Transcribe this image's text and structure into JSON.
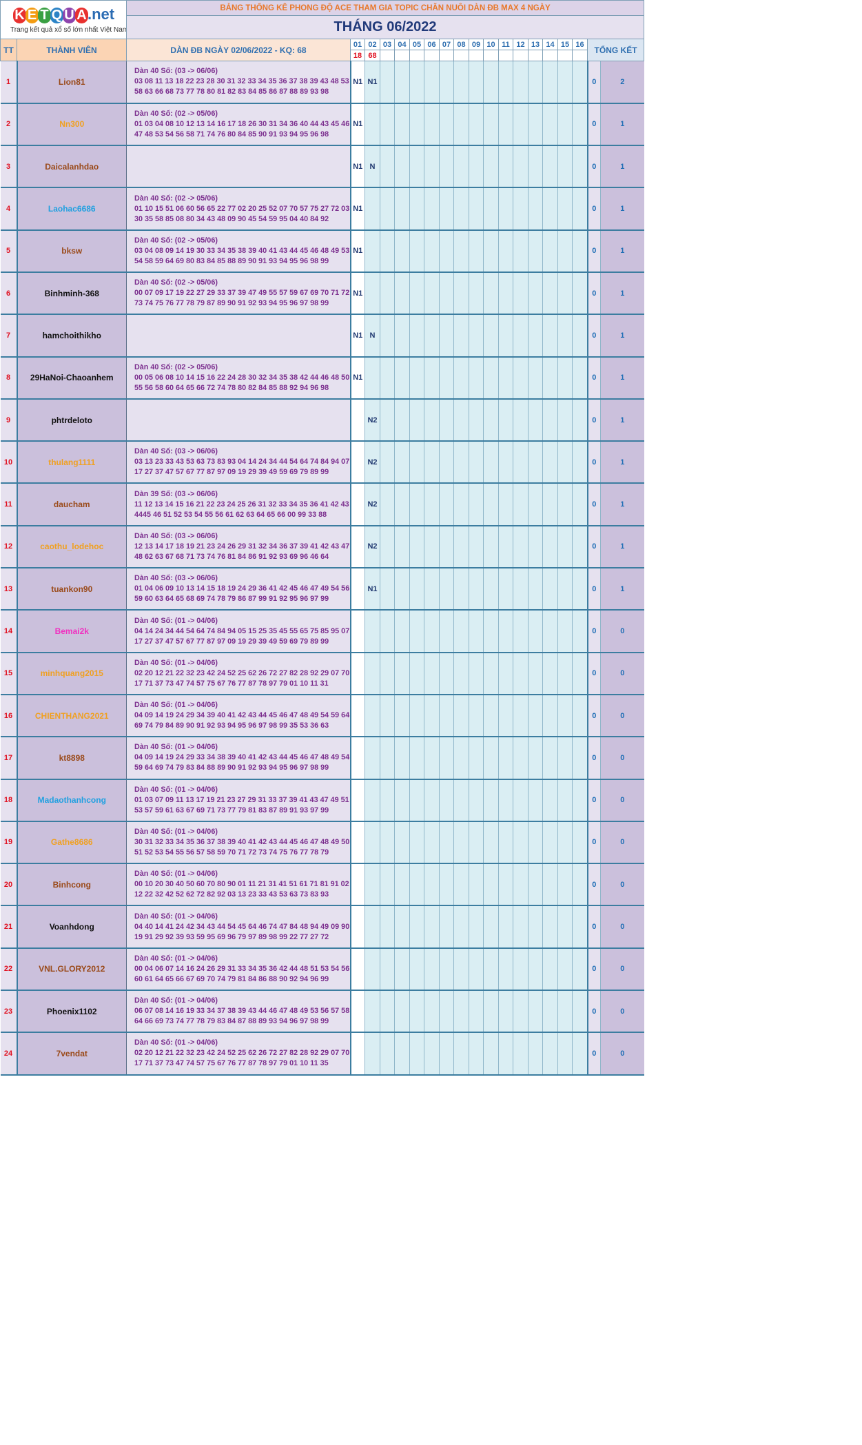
{
  "logo": {
    "k": "K",
    "e": "E",
    "t": "T",
    "q": "Q",
    "u": "U",
    "a": "A",
    "net": ".net",
    "tagline": "Trang kết quả xổ số lớn nhất Việt Nam"
  },
  "banner": "BẢNG THỐNG KÊ PHONG ĐỘ ACE THAM GIA TOPIC CHĂN NUÔI DÀN ĐB MAX 4 NGÀY",
  "month": "THÁNG 06/2022",
  "headers": {
    "tt": "TT",
    "member": "THÀNH VIÊN",
    "dan": "DÀN ĐB NGÀY 02/06/2022 - KQ: 68",
    "total": "TỔNG KẾT"
  },
  "days": [
    "01",
    "02",
    "03",
    "04",
    "05",
    "06",
    "07",
    "08",
    "09",
    "10",
    "11",
    "12",
    "13",
    "14",
    "15",
    "16"
  ],
  "results": [
    "18",
    "68",
    "",
    "",
    "",
    "",
    "",
    "",
    "",
    "",
    "",
    "",
    "",
    "",
    "",
    ""
  ],
  "colors": {
    "red": "#e01020",
    "brown": "#9a4a1a",
    "orange": "#f0a020",
    "blue": "#20a0e0",
    "black": "#111111",
    "pink": "#f030c0"
  },
  "rows": [
    {
      "tt": "1",
      "name": "Lion81",
      "color": "brown",
      "title": "Dàn 40 Số: (03 -> 06/06)",
      "l1": "03 08 11 13 18 22 23 28 30 31 32 33 34 35 36 37 38 39 43 48 53",
      "l2": "58 63 66 68 73 77 78 80 81 82 83 84 85 86 87 88 89 93 98",
      "d1": "N1",
      "d2": "N1",
      "s0": "0",
      "total": "2"
    },
    {
      "tt": "2",
      "name": "Nn300",
      "color": "orange",
      "title": "Dàn 40 Số: (02 -> 05/06)",
      "l1": "01 03 04 08 10 12 13 14 16 17 18 26 30 31 34 36 40 44 43 45 46",
      "l2": "47 48 53 54 56 58 71 74 76 80 84 85 90 91 93 94 95 96 98",
      "d1": "N1",
      "d2": "",
      "s0": "0",
      "total": "1"
    },
    {
      "tt": "3",
      "name": "Daicalanhdao",
      "color": "brown",
      "title": "",
      "l1": "",
      "l2": "",
      "d1": "N1",
      "d2": "N",
      "s0": "0",
      "total": "1"
    },
    {
      "tt": "4",
      "name": "Laohac6686",
      "color": "blue",
      "title": "Dàn 40 Số: (02 -> 05/06)",
      "l1": "01 10 15 51 06 60 56 65 22 77 02 20 25 52 07 70 57 75 27 72 03",
      "l2": "30 35 58 85 08 80 34 43 48 09 90 45 54 59 95 04 40 84 92",
      "d1": "N1",
      "d2": "",
      "s0": "0",
      "total": "1"
    },
    {
      "tt": "5",
      "name": "bksw",
      "color": "brown",
      "title": "Dàn 40 Số: (02 -> 05/06)",
      "l1": "03 04 08 09 14 19 30 33 34 35 38 39 40 41 43 44 45 46 48 49 53",
      "l2": "54 58 59 64 69 80 83 84 85 88 89 90 91 93 94 95 96 98 99",
      "d1": "N1",
      "d2": "",
      "s0": "0",
      "total": "1"
    },
    {
      "tt": "6",
      "name": "Binhminh-368",
      "color": "black",
      "title": "Dàn 40 Số: (02 -> 05/06)",
      "l1": "00 07 09 17 19 22 27 29 33 37 39 47 49 55 57 59 67 69 70 71 72",
      "l2": "73 74 75 76 77 78 79 87 89 90 91 92 93 94 95 96 97 98 99",
      "d1": "N1",
      "d2": "",
      "s0": "0",
      "total": "1"
    },
    {
      "tt": "7",
      "name": "hamchoithikho",
      "color": "black",
      "title": "",
      "l1": "",
      "l2": "",
      "d1": "N1",
      "d2": "N",
      "s0": "0",
      "total": "1"
    },
    {
      "tt": "8",
      "name": "29HaNoi-Chaoanhem",
      "color": "black",
      "title": "Dàn 40 Số: (02 -> 05/06)",
      "l1": "00 05 06 08 10 14 15 16 22 24 28 30 32 34 35 38 42 44 46 48 50",
      "l2": "55 56 58 60 64 65 66 72 74 78 80 82 84 85 88 92 94 96 98",
      "d1": "N1",
      "d2": "",
      "s0": "0",
      "total": "1"
    },
    {
      "tt": "9",
      "name": "phtrdeloto",
      "color": "black",
      "title": "",
      "l1": "",
      "l2": "",
      "d1": "",
      "d2": "N2",
      "s0": "0",
      "total": "1"
    },
    {
      "tt": "10",
      "name": "thulang1111",
      "color": "orange",
      "title": "Dàn 40 Số: (03 -> 06/06)",
      "l1": "03 13 23 33 43 53 63 73 83 93 04 14 24 34 44 54 64 74 84 94 07",
      "l2": "17 27 37 47 57 67 77 87 97 09 19 29 39 49 59 69 79 89 99",
      "d1": "",
      "d2": "N2",
      "s0": "0",
      "total": "1"
    },
    {
      "tt": "11",
      "name": "daucham",
      "color": "brown",
      "title": "Dàn 39 Số: (03 -> 06/06)",
      "l1": "11 12 13 14 15 16 21 22 23 24 25 26 31 32 33 34 35 36 41 42 43",
      "l2": "4445 46 51 52 53 54 55 56 61 62 63 64 65 66 00 99 33 88",
      "d1": "",
      "d2": "N2",
      "s0": "0",
      "total": "1"
    },
    {
      "tt": "12",
      "name": "caothu_lodehoc",
      "color": "orange",
      "title": "Dàn 40 Số: (03 -> 06/06)",
      "l1": "12 13 14 17 18 19 21 23 24 26 29 31 32 34 36 37 39 41 42 43 47",
      "l2": "48 62 63 67 68 71 73 74 76 81 84 86 91 92 93 69 96 46 64",
      "d1": "",
      "d2": "N2",
      "s0": "0",
      "total": "1"
    },
    {
      "tt": "13",
      "name": "tuankon90",
      "color": "brown",
      "title": "Dàn 40 Số: (03 -> 06/06)",
      "l1": "01 04 06 09 10 13 14 15 18 19 24 29 36 41 42 45 46 47 49 54 56",
      "l2": "59 60 63 64 65 68 69 74 78 79 86 87 99 91 92 95 96 97 99",
      "d1": "",
      "d2": "N1",
      "s0": "0",
      "total": "1"
    },
    {
      "tt": "14",
      "name": "Bemai2k",
      "color": "pink",
      "title": "Dàn 40 Số: (01 -> 04/06)",
      "l1": "04 14 24 34 44 54 64 74 84 94 05 15 25 35 45 55 65 75 85 95 07",
      "l2": "17 27 37 47 57 67 77 87 97 09 19 29 39 49 59 69 79 89 99",
      "d1": "",
      "d2": "",
      "s0": "0",
      "total": "0"
    },
    {
      "tt": "15",
      "name": "minhquang2015",
      "color": "orange",
      "title": "Dàn 40 Số: (01 -> 04/06)",
      "l1": "02 20 12 21 22 32 23 42 24 52 25 62 26 72 27 82 28 92 29 07 70",
      "l2": "17 71 37 73 47 74 57 75 67 76 77 87 78 97 79 01 10 11 31",
      "d1": "",
      "d2": "",
      "s0": "0",
      "total": "0"
    },
    {
      "tt": "16",
      "name": "CHIENTHANG2021",
      "color": "orange",
      "title": "Dàn 40 Số: (01 -> 04/06)",
      "l1": "04 09 14 19 24 29 34 39 40 41 42 43 44 45 46 47 48 49 54 59 64",
      "l2": "69 74 79 84 89 90 91 92 93 94 95 96 97 98 99 35 53 36 63",
      "d1": "",
      "d2": "",
      "s0": "0",
      "total": "0"
    },
    {
      "tt": "17",
      "name": "kt8898",
      "color": "brown",
      "title": "Dàn 40 Số: (01 -> 04/06)",
      "l1": "04 09 14 19 24 29 33 34 38 39 40 41 42 43 44 45 46 47 48 49 54",
      "l2": "59 64 69 74 79 83 84 88 89 90 91 92 93 94 95 96 97 98 99",
      "d1": "",
      "d2": "",
      "s0": "0",
      "total": "0"
    },
    {
      "tt": "18",
      "name": "Madaothanhcong",
      "color": "blue",
      "title": "Dàn 40 Số: (01 -> 04/06)",
      "l1": "01 03 07 09 11 13 17 19 21 23 27 29 31 33 37 39 41 43 47 49 51",
      "l2": "53 57 59 61 63 67 69 71 73 77 79 81 83 87 89 91 93 97 99",
      "d1": "",
      "d2": "",
      "s0": "0",
      "total": "0"
    },
    {
      "tt": "19",
      "name": "Gathe8686",
      "color": "orange",
      "title": "Dàn 40 Số: (01 -> 04/06)",
      "l1": "30 31 32 33 34 35 36 37 38 39 40 41 42 43 44 45 46 47 48 49 50",
      "l2": "51 52 53 54 55 56 57 58 59 70 71 72 73 74 75 76 77 78 79",
      "d1": "",
      "d2": "",
      "s0": "0",
      "total": "0"
    },
    {
      "tt": "20",
      "name": "Binhcong",
      "color": "brown",
      "title": "Dàn 40 Số: (01 -> 04/06)",
      "l1": "00 10 20 30 40 50 60 70 80 90 01 11 21 31 41 51 61 71 81 91 02",
      "l2": "12 22 32 42 52 62 72 82 92 03 13 23 33 43 53 63 73 83 93",
      "d1": "",
      "d2": "",
      "s0": "0",
      "total": "0"
    },
    {
      "tt": "21",
      "name": "Voanhdong",
      "color": "black",
      "title": "Dàn 40 Số: (01 -> 04/06)",
      "l1": "04 40 14 41 24 42 34 43 44 54 45 64 46 74 47 84 48 94 49 09 90",
      "l2": "19 91 29 92 39 93 59 95 69 96 79 97 89 98 99 22 77 27 72",
      "d1": "",
      "d2": "",
      "s0": "0",
      "total": "0"
    },
    {
      "tt": "22",
      "name": "VNL.GLORY2012",
      "color": "brown",
      "title": "Dàn 40 Số: (01 -> 04/06)",
      "l1": "00 04 06 07 14 16 24 26 29 31 33 34 35 36 42 44 48 51 53 54 56",
      "l2": "60 61 64 65 66 67 69 70 74 79 81 84 86 88 90 92 94 96 99",
      "d1": "",
      "d2": "",
      "s0": "0",
      "total": "0"
    },
    {
      "tt": "23",
      "name": "Phoenix1102",
      "color": "black",
      "title": "Dàn 40 Số: (01 -> 04/06)",
      "l1": "06 07 08 14 16 19 33 34 37 38 39 43 44 46 47 48 49 53 56 57 58",
      "l2": "64 66 69 73 74 77 78 79 83 84 87 88 89 93 94 96 97 98 99",
      "d1": "",
      "d2": "",
      "s0": "0",
      "total": "0"
    },
    {
      "tt": "24",
      "name": "7vendat",
      "color": "brown",
      "title": "Dàn 40 Số: (01 -> 04/06)",
      "l1": "02 20 12 21 22 32 23 42 24 52 25 62 26 72 27 82 28 92 29 07 70",
      "l2": "17 71 37 73 47 74 57 75 67 76 77 87 78 97 79 01 10 11 35",
      "d1": "",
      "d2": "",
      "s0": "0",
      "total": "0"
    }
  ]
}
